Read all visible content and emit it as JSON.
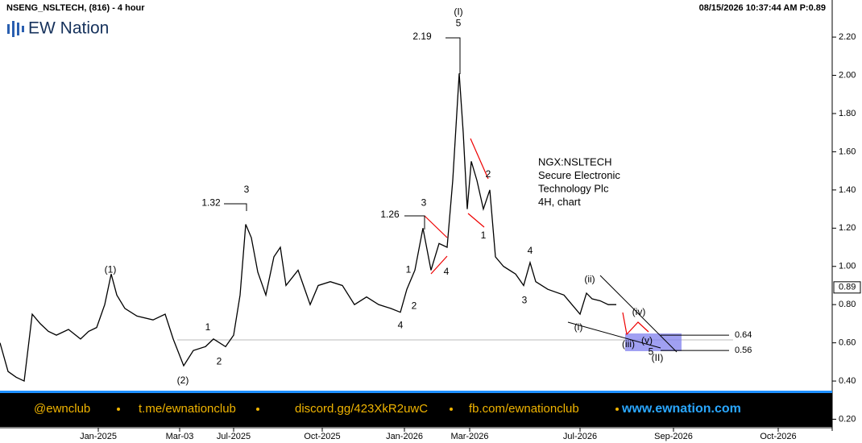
{
  "chart_data": {
    "type": "line",
    "title": "NSENG_NSLTECH, (816) - 4 hour",
    "timestamp": "08/15/2026 10:37:44 AM  P:0.89",
    "logo": "EW Nation",
    "info": [
      "NGX:NSLTECH",
      "Secure Electronic",
      "Technology Plc",
      "4H, chart"
    ],
    "footer": [
      "@ewnclub",
      "t.me/ewnationclub",
      "discord.gg/423XkR2uwC",
      "fb.com/ewnationclub",
      "www.ewnation.com"
    ],
    "xlim": [
      0,
      1030
    ],
    "xticks": [
      {
        "value": 122,
        "label": "Jan-2025"
      },
      {
        "value": 223,
        "label": "Mar-03"
      },
      {
        "value": 290,
        "label": "Jul-2025"
      },
      {
        "value": 400,
        "label": "Oct-2025"
      },
      {
        "value": 502,
        "label": "Jan-2026"
      },
      {
        "value": 583,
        "label": "Mar-2026"
      },
      {
        "value": 720,
        "label": "Jul-2026"
      },
      {
        "value": 836,
        "label": "Sep-2026"
      },
      {
        "value": 966,
        "label": "Oct-2026"
      }
    ],
    "ylim": [
      0.16,
      2.39
    ],
    "yticks": [
      {
        "value": 0.2,
        "label": "0.20"
      },
      {
        "value": 0.4,
        "label": "0.40"
      },
      {
        "value": 0.6,
        "label": "0.60"
      },
      {
        "value": 0.8,
        "label": "0.80"
      },
      {
        "value": 1.0,
        "label": "1.00"
      },
      {
        "value": 1.2,
        "label": "1.20"
      },
      {
        "value": 1.4,
        "label": "1.40"
      },
      {
        "value": 1.6,
        "label": "1.60"
      },
      {
        "value": 1.8,
        "label": "1.80"
      },
      {
        "value": 2.0,
        "label": "2.00"
      },
      {
        "value": 2.2,
        "label": "2.20"
      }
    ],
    "last_price": 0.89,
    "series": [
      {
        "color": "#000000",
        "x": [
          0,
          10,
          20,
          30,
          40,
          50,
          60,
          70,
          85,
          100,
          110,
          120,
          130,
          138,
          145,
          155,
          170,
          190,
          205,
          215,
          228,
          240,
          255,
          265,
          280,
          290,
          298,
          305,
          312,
          320,
          330,
          340,
          348,
          355,
          370,
          385,
          395,
          410,
          425,
          440,
          455,
          470,
          485,
          497,
          505,
          515,
          525,
          535,
          545,
          555,
          562,
          570,
          575,
          580,
          585,
          592,
          600,
          608,
          615,
          625,
          640,
          650,
          658,
          665,
          680,
          700,
          710,
          720,
          728,
          735,
          745,
          755,
          765
        ],
        "values": [
          0.6,
          0.45,
          0.42,
          0.4,
          0.75,
          0.7,
          0.66,
          0.64,
          0.67,
          0.62,
          0.66,
          0.68,
          0.8,
          0.96,
          0.85,
          0.78,
          0.74,
          0.72,
          0.75,
          0.62,
          0.48,
          0.56,
          0.58,
          0.62,
          0.58,
          0.64,
          0.85,
          1.22,
          1.15,
          0.97,
          0.85,
          1.05,
          1.1,
          0.9,
          0.98,
          0.8,
          0.9,
          0.92,
          0.9,
          0.8,
          0.84,
          0.8,
          0.78,
          0.76,
          0.88,
          0.98,
          1.2,
          0.98,
          1.12,
          1.1,
          1.45,
          2.01,
          1.7,
          1.3,
          1.55,
          1.45,
          1.3,
          1.4,
          1.05,
          1.0,
          0.96,
          0.9,
          1.02,
          0.92,
          0.88,
          0.85,
          0.8,
          0.75,
          0.86,
          0.83,
          0.82,
          0.8,
          0.8
        ]
      }
    ],
    "levels": [
      {
        "value": 0.64,
        "label": "0.64"
      },
      {
        "value": 0.56,
        "label": "0.56"
      }
    ],
    "annotations": [
      {
        "text": "(1)",
        "x": 137,
        "y": 0.98
      },
      {
        "text": "(2)",
        "x": 227,
        "y": 0.4
      },
      {
        "text": "1",
        "x": 258,
        "y": 0.68
      },
      {
        "text": "2",
        "x": 272,
        "y": 0.5
      },
      {
        "text": "3",
        "x": 306,
        "y": 1.4
      },
      {
        "text": "1.32",
        "x": 262,
        "y": 1.33
      },
      {
        "text": "1",
        "x": 507,
        "y": 0.98
      },
      {
        "text": "2",
        "x": 514,
        "y": 0.79
      },
      {
        "text": "4",
        "x": 497,
        "y": 0.69
      },
      {
        "text": "3",
        "x": 526,
        "y": 1.33
      },
      {
        "text": "1.26",
        "x": 484,
        "y": 1.27
      },
      {
        "text": "4",
        "x": 554,
        "y": 0.97
      },
      {
        "text": "(I)",
        "x": 569,
        "y": 2.33
      },
      {
        "text": "5",
        "x": 569,
        "y": 2.27
      },
      {
        "text": "2.19",
        "x": 524,
        "y": 2.2
      },
      {
        "text": "2",
        "x": 606,
        "y": 1.48
      },
      {
        "text": "1",
        "x": 600,
        "y": 1.16
      },
      {
        "text": "4",
        "x": 658,
        "y": 1.08
      },
      {
        "text": "3",
        "x": 651,
        "y": 0.82
      },
      {
        "text": "(ii)",
        "x": 732,
        "y": 0.93
      },
      {
        "text": "(i)",
        "x": 718,
        "y": 0.68
      },
      {
        "text": "(iv)",
        "x": 793,
        "y": 0.76
      },
      {
        "text": "(iii)",
        "x": 780,
        "y": 0.59
      },
      {
        "text": "(v)",
        "x": 803,
        "y": 0.61
      },
      {
        "text": "5",
        "x": 808,
        "y": 0.55
      },
      {
        "text": "(II)",
        "x": 816,
        "y": 0.52
      }
    ]
  }
}
